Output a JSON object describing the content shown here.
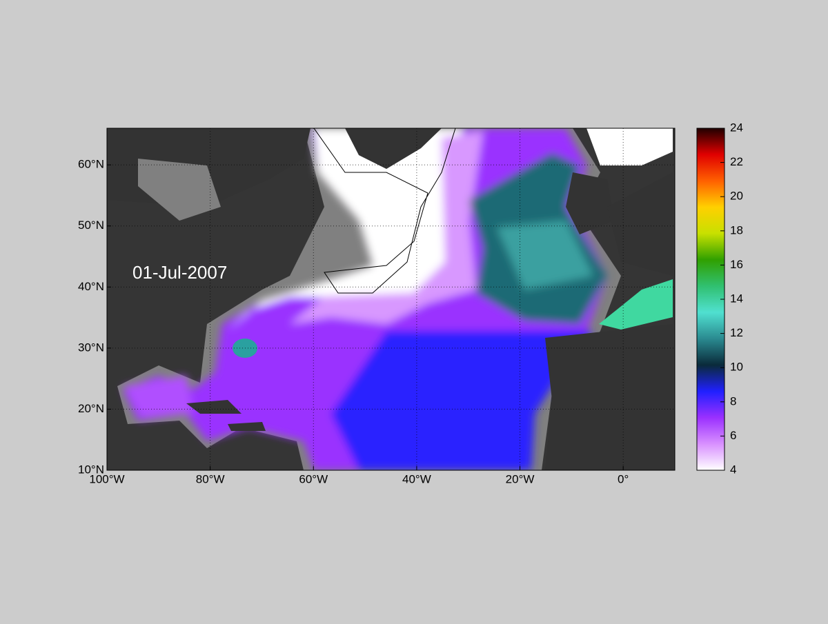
{
  "date_label": "01-Jul-2007",
  "map": {
    "xlim": [
      -100,
      10
    ],
    "ylim": [
      10,
      66
    ],
    "xticks": [
      {
        "value": -100,
        "label": "100°W"
      },
      {
        "value": -80,
        "label": "80°W"
      },
      {
        "value": -60,
        "label": "60°W"
      },
      {
        "value": -40,
        "label": "40°W"
      },
      {
        "value": -20,
        "label": "20°W"
      },
      {
        "value": 0,
        "label": "0°"
      }
    ],
    "yticks": [
      {
        "value": 10,
        "label": "10°N"
      },
      {
        "value": 20,
        "label": "20°N"
      },
      {
        "value": 30,
        "label": "30°N"
      },
      {
        "value": 40,
        "label": "40°N"
      },
      {
        "value": 50,
        "label": "50°N"
      },
      {
        "value": 60,
        "label": "60°N"
      }
    ],
    "grid": true
  },
  "colorbar": {
    "clim": [
      4,
      24
    ],
    "ticks": [
      4,
      6,
      8,
      10,
      12,
      14,
      16,
      18,
      20,
      22,
      24
    ],
    "colormap": [
      "#ffffff",
      "#d890ff",
      "#9a30ff",
      "#2020ff",
      "#0a2a3a",
      "#2a8a90",
      "#50e0d0",
      "#30c070",
      "#30a000",
      "#c8e000",
      "#ffd000",
      "#ff6000",
      "#e00000",
      "#200000"
    ]
  }
}
